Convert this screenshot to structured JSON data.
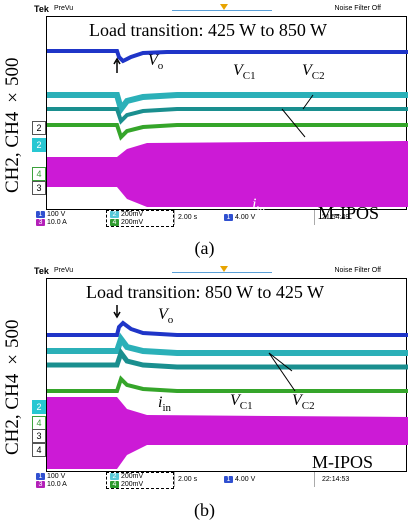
{
  "panels": [
    {
      "id": "a",
      "ylabel": "CH2, CH4 ×500",
      "brand": "Tek",
      "mode": "PreVu",
      "filter": "Noise Filter Off",
      "title": "Load transition: 425 W to 850 W",
      "label_vo": "V",
      "sub_vo": "o",
      "label_vc1": "V",
      "sub_vc1": "C1",
      "label_vc2": "V",
      "sub_vc2": "C2",
      "label_iin": "i",
      "sub_iin": "in",
      "ipos": "M-IPOS",
      "markers": [
        "2",
        "2",
        "4",
        "3"
      ],
      "ch1": "100 V",
      "ch3": "10.0 A",
      "ch2": "200mV",
      "ch4": "200mV",
      "timebase": "2.00 s",
      "trigger": "4.00 V",
      "clock": "21:54:49",
      "caption": "(a)"
    },
    {
      "id": "b",
      "ylabel": "CH2, CH4 ×500",
      "brand": "Tek",
      "mode": "PreVu",
      "filter": "Noise Filter Off",
      "title": "Load transition: 850 W to 425 W",
      "label_vo": "V",
      "sub_vo": "o",
      "label_vc1": "V",
      "sub_vc1": "C1",
      "label_vc2": "V",
      "sub_vc2": "C2",
      "label_iin": "i",
      "sub_iin": "in",
      "ipos": "M-IPOS",
      "markers": [
        "2",
        "4",
        "3",
        "4"
      ],
      "ch1": "100 V",
      "ch3": "10.0 A",
      "ch2": "200mV",
      "ch4": "200mV",
      "timebase": "2.00 s",
      "trigger": "4.00 V",
      "clock": "22:14:53",
      "caption": "(b)"
    }
  ],
  "colors": {
    "vo": "#1f35c8",
    "vc1": "#2bb0b8",
    "vc2": "#1a8f8f",
    "green": "#35a52a",
    "iin": "#cc1ad6",
    "ch1chip": "#3050d0",
    "ch3chip": "#b31fb8",
    "ch2chip": "#55c8d8",
    "ch4chip": "#2e9a2e"
  }
}
